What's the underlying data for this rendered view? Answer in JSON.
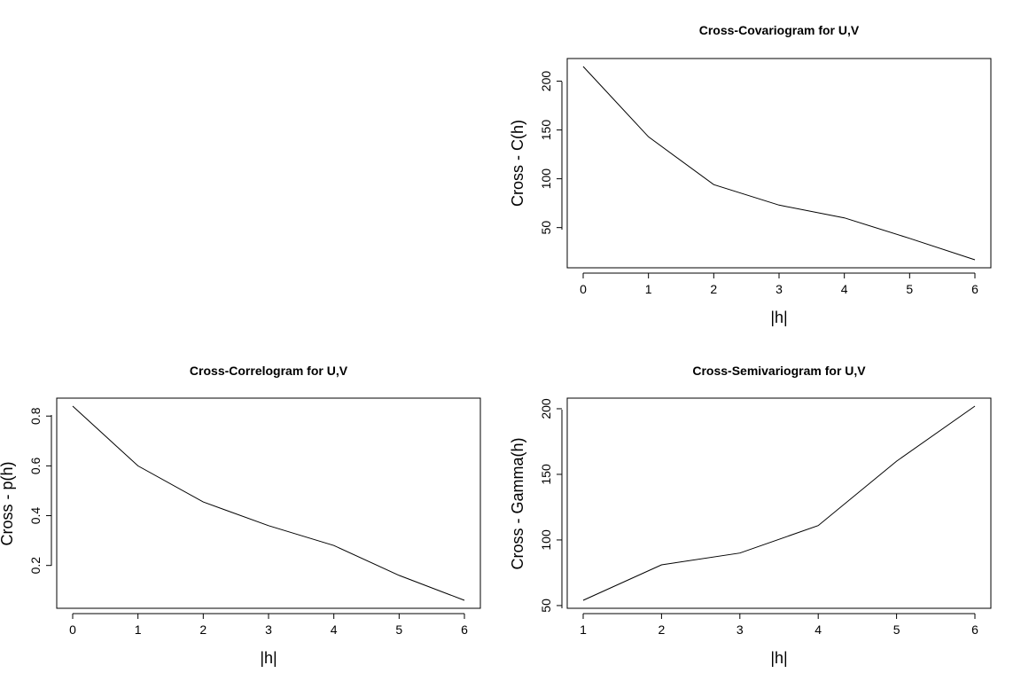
{
  "chart_data": [
    {
      "type": "line",
      "title": "Cross-Covariogram for U,V",
      "xlabel": "|h|",
      "ylabel": "Cross - C(h)",
      "xlim": [
        0,
        6
      ],
      "ylim": [
        17,
        215
      ],
      "x_ticks": [
        "0",
        "1",
        "2",
        "3",
        "4",
        "5",
        "6"
      ],
      "y_ticks": [
        "50",
        "100",
        "150",
        "200"
      ],
      "x": [
        0,
        1,
        2,
        3,
        4,
        5,
        6
      ],
      "values": [
        215,
        143,
        94,
        73,
        60,
        39,
        17
      ],
      "grid": false,
      "line_color": "#000000"
    },
    {
      "type": "line",
      "title": "Cross-Correlogram for U,V",
      "xlabel": "|h|",
      "ylabel": "Cross - p(h)",
      "xlim": [
        0,
        6
      ],
      "ylim": [
        0.06,
        0.84
      ],
      "x_ticks": [
        "0",
        "1",
        "2",
        "3",
        "4",
        "5",
        "6"
      ],
      "y_ticks": [
        "0.2",
        "0.4",
        "0.6",
        "0.8"
      ],
      "x": [
        0,
        1,
        2,
        3,
        4,
        5,
        6
      ],
      "values": [
        0.84,
        0.6,
        0.455,
        0.36,
        0.28,
        0.16,
        0.06
      ],
      "grid": false,
      "line_color": "#000000"
    },
    {
      "type": "line",
      "title": "Cross-Semivariogram for U,V",
      "xlabel": "|h|",
      "ylabel": "Cross - Gamma(h)",
      "xlim": [
        1,
        6
      ],
      "ylim": [
        54,
        202
      ],
      "x_ticks": [
        "1",
        "2",
        "3",
        "4",
        "5",
        "6"
      ],
      "y_ticks": [
        "50",
        "100",
        "150",
        "200"
      ],
      "x": [
        1,
        2,
        3,
        4,
        5,
        6
      ],
      "values": [
        54,
        81,
        90,
        111,
        160,
        202
      ],
      "grid": false,
      "line_color": "#000000"
    }
  ]
}
